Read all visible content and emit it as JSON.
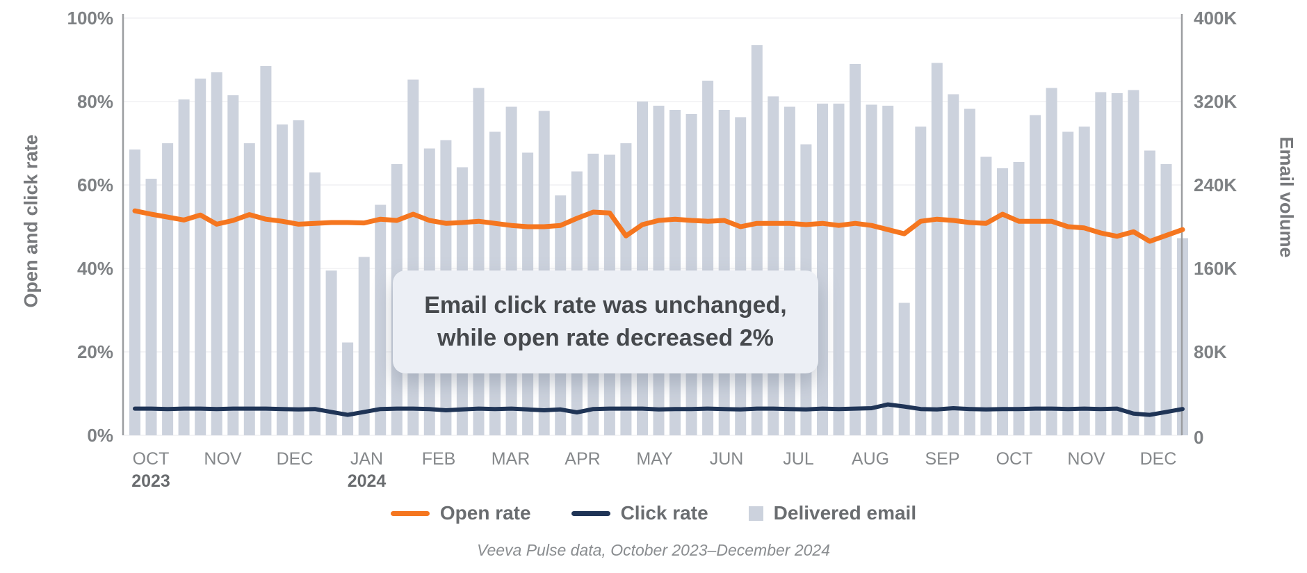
{
  "chart_data": {
    "type": "bar",
    "subtype": "weekly bars with two overlay lines",
    "annotation": {
      "line1": "Email click rate was unchanged,",
      "line2": "while open rate decreased 2%"
    },
    "caption": "Veeva Pulse data, October 2023–December 2024",
    "left_axis": {
      "label": "Open and click rate",
      "ticks": [
        "0%",
        "20%",
        "40%",
        "60%",
        "80%",
        "100%"
      ],
      "range": [
        0,
        100
      ]
    },
    "right_axis": {
      "label": "Email volume",
      "ticks": [
        "0",
        "80K",
        "160K",
        "240K",
        "320K",
        "400K"
      ],
      "range": [
        0,
        400000
      ]
    },
    "x_axis": {
      "months": [
        "OCT",
        "NOV",
        "DEC",
        "JAN",
        "FEB",
        "MAR",
        "APR",
        "MAY",
        "JUN",
        "JUL",
        "AUG",
        "SEP",
        "OCT",
        "NOV",
        "DEC"
      ],
      "year_ticks": [
        {
          "label": "2023",
          "month_index": 0
        },
        {
          "label": "2024",
          "month_index": 3
        }
      ],
      "weeks_per_month": [
        4,
        4,
        5,
        4,
        4,
        5,
        4,
        4,
        5,
        4,
        5,
        4,
        4,
        5,
        4
      ]
    },
    "grid": "horizontal gridlines every 20%",
    "legend_position": "bottom center",
    "series": [
      {
        "name": "Open rate",
        "type": "line",
        "color": "#F5761F",
        "unit": "%",
        "values": [
          53.8,
          53.0,
          52.3,
          51.6,
          52.8,
          50.6,
          51.5,
          52.9,
          51.8,
          51.3,
          50.6,
          50.8,
          51.0,
          51.0,
          50.9,
          51.8,
          51.5,
          53.0,
          51.5,
          50.8,
          51.0,
          51.3,
          50.8,
          50.3,
          50.0,
          50.0,
          50.3,
          52.0,
          53.5,
          53.3,
          47.8,
          50.5,
          51.5,
          51.8,
          51.5,
          51.3,
          51.5,
          50.0,
          50.8,
          50.8,
          50.8,
          50.5,
          50.8,
          50.3,
          50.8,
          50.3,
          49.3,
          48.3,
          51.3,
          51.8,
          51.5,
          51.0,
          50.8,
          53.0,
          51.3,
          51.3,
          51.3,
          50.0,
          49.7,
          48.5,
          47.7,
          48.8,
          46.5,
          47.9,
          49.3
        ]
      },
      {
        "name": "Click rate",
        "type": "line",
        "color": "#1F3456",
        "unit": "%",
        "values": [
          6.4,
          6.4,
          6.3,
          6.4,
          6.4,
          6.3,
          6.4,
          6.4,
          6.4,
          6.3,
          6.2,
          6.3,
          5.6,
          4.9,
          5.6,
          6.3,
          6.4,
          6.4,
          6.3,
          6.0,
          6.2,
          6.4,
          6.3,
          6.4,
          6.2,
          6.0,
          6.2,
          5.5,
          6.3,
          6.4,
          6.4,
          6.4,
          6.2,
          6.3,
          6.3,
          6.4,
          6.3,
          6.2,
          6.4,
          6.4,
          6.3,
          6.2,
          6.4,
          6.3,
          6.4,
          6.5,
          7.4,
          6.9,
          6.3,
          6.2,
          6.5,
          6.3,
          6.2,
          6.3,
          6.3,
          6.4,
          6.4,
          6.3,
          6.4,
          6.3,
          6.4,
          5.2,
          4.9,
          5.6,
          6.3
        ]
      },
      {
        "name": "Delivered email",
        "type": "bar",
        "color": "#CCD2DD",
        "unit": "emails delivered (thousands)",
        "values": [
          274,
          246,
          280,
          322,
          342,
          348,
          326,
          280,
          354,
          298,
          302,
          252,
          158,
          89,
          171,
          221,
          260,
          341,
          275,
          283,
          257,
          333,
          291,
          315,
          271,
          311,
          230,
          253,
          270,
          269,
          280,
          320,
          316,
          312,
          308,
          340,
          312,
          305,
          374,
          325,
          315,
          279,
          318,
          318,
          356,
          317,
          316,
          127,
          296,
          357,
          327,
          313,
          267,
          256,
          262,
          307,
          333,
          291,
          296,
          329,
          328,
          331,
          273,
          260,
          189
        ]
      }
    ],
    "colors": {
      "grid": "#F1F1F3",
      "axis_line": "#9B9DA0",
      "tick_text": "#7E8184",
      "month_text": "#85888B",
      "year_text": "#696C6F",
      "annotation_bg": "#ECEFF5",
      "annotation_text": "#46494D"
    }
  }
}
